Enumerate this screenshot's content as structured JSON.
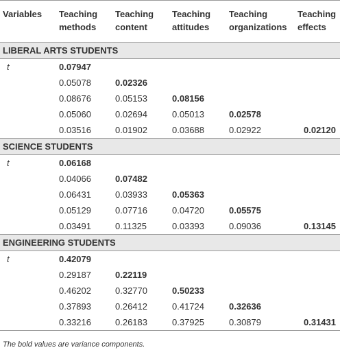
{
  "table": {
    "header": [
      "Variables",
      "Teaching methods",
      "Teaching content",
      "Teaching attitudes",
      "Teaching organizations",
      "Teaching effects"
    ],
    "sections": [
      {
        "title": "LIBERAL ARTS STUDENTS",
        "rows": [
          [
            "t",
            "0.07947",
            null,
            null,
            null,
            null
          ],
          [
            null,
            "0.05078",
            "0.02326",
            null,
            null,
            null
          ],
          [
            null,
            "0.08676",
            "0.05153",
            "0.08156",
            null,
            null
          ],
          [
            null,
            "0.05060",
            "0.02694",
            "0.05013",
            "0.02578",
            null
          ],
          [
            null,
            "0.03516",
            "0.01902",
            "0.03688",
            "0.02922",
            "0.02120"
          ]
        ]
      },
      {
        "title": "SCIENCE STUDENTS",
        "rows": [
          [
            "t",
            "0.06168",
            null,
            null,
            null,
            null
          ],
          [
            null,
            "0.04066",
            "0.07482",
            null,
            null,
            null
          ],
          [
            null,
            "0.06431",
            "0.03933",
            "0.05363",
            null,
            null
          ],
          [
            null,
            "0.05129",
            "0.07716",
            "0.04720",
            "0.05575",
            null
          ],
          [
            null,
            "0.03491",
            "0.11325",
            "0.03393",
            "0.09036",
            "0.13145"
          ]
        ]
      },
      {
        "title": "ENGINEERING STUDENTS",
        "rows": [
          [
            "t",
            "0.42079",
            null,
            null,
            null,
            null
          ],
          [
            null,
            "0.29187",
            "0.22119",
            null,
            null,
            null
          ],
          [
            null,
            "0.46202",
            "0.32770",
            "0.50233",
            null,
            null
          ],
          [
            null,
            "0.37893",
            "0.26412",
            "0.41724",
            "0.32636",
            null
          ],
          [
            null,
            "0.33216",
            "0.26183",
            "0.37925",
            "0.30879",
            "0.31431"
          ]
        ]
      }
    ],
    "footnote": "The bold values are variance components."
  }
}
